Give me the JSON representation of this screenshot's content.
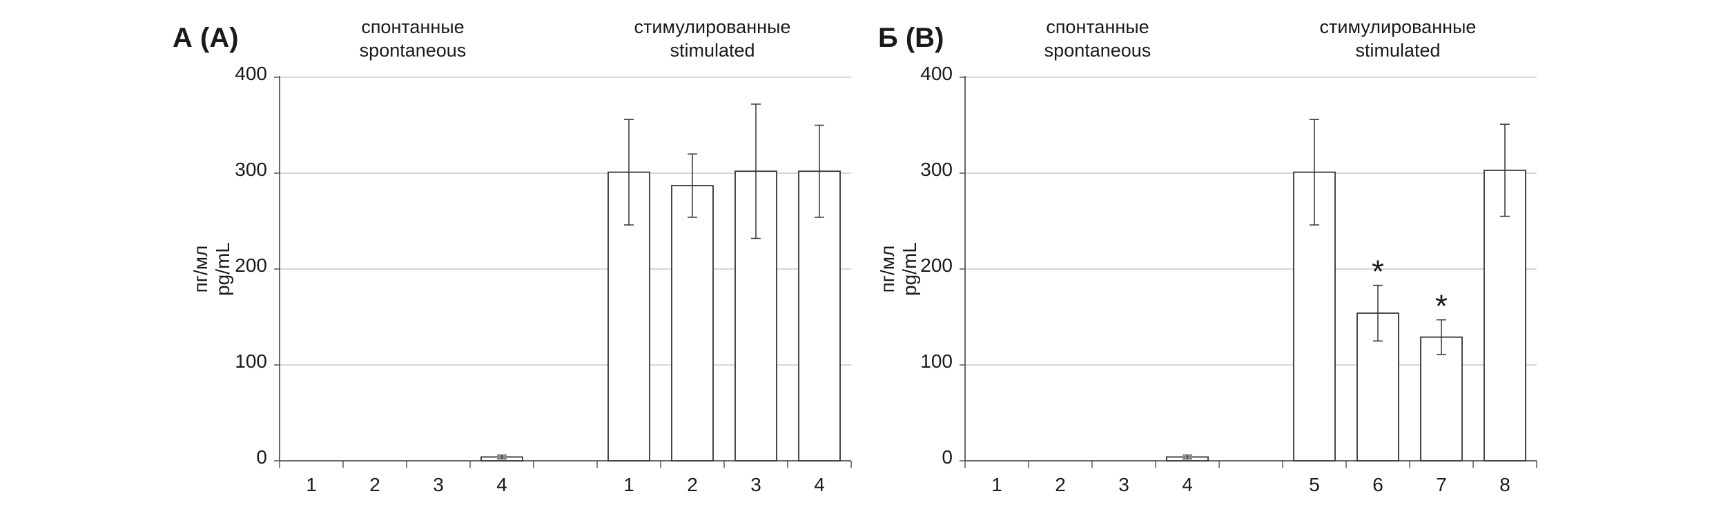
{
  "chart_data": [
    {
      "type": "bar",
      "panel_label": "А (A)",
      "group_titles": [
        {
          "line1": "спонтанные",
          "line2": "spontaneous"
        },
        {
          "line1": "стимулированные",
          "line2": "stimulated"
        }
      ],
      "ylabel": [
        "пг/мл",
        "pg/mL"
      ],
      "ylim": [
        0,
        400
      ],
      "yticks": [
        "0",
        "100",
        "200",
        "300",
        "400"
      ],
      "grid": true,
      "categories": [
        "1",
        "2",
        "3",
        "4",
        "",
        "1",
        "2",
        "3",
        "4"
      ],
      "values": [
        0,
        0,
        0,
        4,
        null,
        301,
        287,
        302,
        302
      ],
      "errors": [
        0,
        0,
        0,
        2,
        null,
        55,
        33,
        70,
        48
      ],
      "annotations": [
        "",
        "",
        "",
        "",
        "",
        "",
        "",
        "",
        ""
      ]
    },
    {
      "type": "bar",
      "panel_label": "Б (B)",
      "group_titles": [
        {
          "line1": "спонтанные",
          "line2": "spontaneous"
        },
        {
          "line1": "стимулированные",
          "line2": "stimulated"
        }
      ],
      "ylabel": [
        "пг/мл",
        "pg/mL"
      ],
      "ylim": [
        0,
        400
      ],
      "yticks": [
        "0",
        "100",
        "200",
        "300",
        "400"
      ],
      "grid": true,
      "categories": [
        "1",
        "2",
        "3",
        "4",
        "",
        "5",
        "6",
        "7",
        "8"
      ],
      "values": [
        0,
        0,
        0,
        4,
        null,
        301,
        154,
        129,
        303
      ],
      "errors": [
        0,
        0,
        0,
        2,
        null,
        55,
        29,
        18,
        48
      ],
      "annotations": [
        "",
        "",
        "",
        "",
        "",
        "",
        "*",
        "*",
        ""
      ]
    }
  ]
}
